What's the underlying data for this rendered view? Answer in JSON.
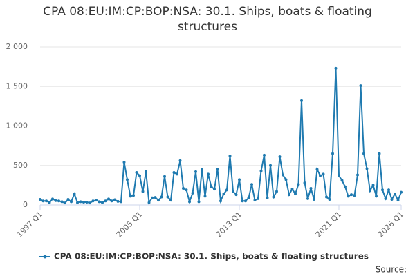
{
  "chart_data": {
    "type": "line",
    "title": "CPA 08:EU:IM:CP:BOP:NSA: 30.1. Ships, boats & floating structures",
    "source": "Source:",
    "categories": [
      "1997 Q1",
      null,
      null,
      null,
      null,
      null,
      null,
      null,
      null,
      null,
      null,
      null,
      null,
      null,
      null,
      null,
      null,
      null,
      null,
      null,
      null,
      null,
      null,
      null,
      null,
      null,
      null,
      null,
      null,
      null,
      null,
      null,
      "2005 Q1",
      null,
      null,
      null,
      null,
      null,
      null,
      null,
      null,
      null,
      null,
      null,
      null,
      null,
      null,
      null,
      null,
      null,
      null,
      null,
      null,
      null,
      null,
      null,
      null,
      null,
      null,
      null,
      null,
      null,
      null,
      null,
      "2013 Q1",
      null,
      null,
      null,
      null,
      null,
      null,
      null,
      null,
      null,
      null,
      null,
      null,
      null,
      null,
      null,
      null,
      null,
      null,
      null,
      null,
      null,
      null,
      null,
      null,
      null,
      null,
      null,
      null,
      null,
      null,
      null,
      "2021 Q1",
      null,
      null,
      null,
      null,
      null,
      null,
      null,
      null,
      null,
      null,
      null,
      null,
      null,
      null,
      null,
      null,
      null,
      null,
      null,
      "2026 Q1"
    ],
    "series": [
      {
        "name": "CPA 08:EU:IM:CP:BOP:NSA: 30.1. Ships, boats & floating structures",
        "color": "#1f7ab0",
        "values": [
          70,
          50,
          50,
          30,
          75,
          55,
          50,
          40,
          25,
          70,
          40,
          140,
          30,
          40,
          35,
          35,
          25,
          50,
          60,
          40,
          30,
          50,
          75,
          50,
          65,
          45,
          40,
          540,
          320,
          110,
          120,
          410,
          370,
          170,
          420,
          30,
          90,
          95,
          60,
          100,
          360,
          100,
          60,
          410,
          390,
          560,
          210,
          190,
          40,
          150,
          420,
          40,
          450,
          110,
          390,
          230,
          200,
          450,
          50,
          140,
          190,
          620,
          170,
          130,
          320,
          50,
          50,
          90,
          260,
          60,
          80,
          430,
          630,
          90,
          500,
          100,
          170,
          610,
          380,
          320,
          130,
          200,
          140,
          260,
          1320,
          280,
          80,
          210,
          70,
          450,
          370,
          390,
          100,
          70,
          650,
          1730,
          370,
          310,
          230,
          110,
          130,
          120,
          380,
          1510,
          650,
          460,
          180,
          250,
          110,
          650,
          190,
          80,
          190,
          70,
          140,
          60,
          160
        ]
      }
    ],
    "ylim": [
      0,
      2000
    ],
    "yticks": [
      0,
      500,
      {
        "value": 1000,
        "label": "1 000"
      },
      {
        "value": 1500,
        "label": "1 500"
      },
      {
        "value": 2000,
        "label": "2 000"
      }
    ],
    "grid": true,
    "legend": "bottom"
  }
}
